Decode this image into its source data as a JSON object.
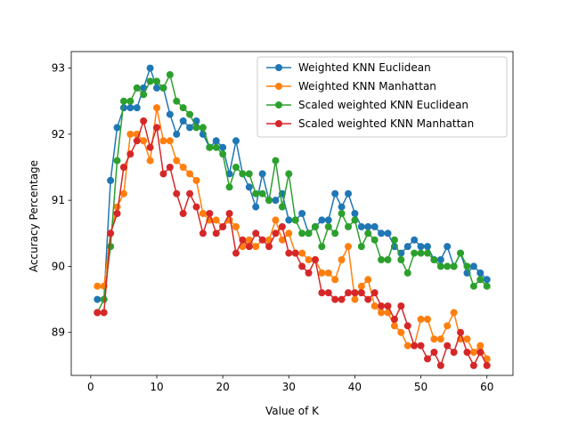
{
  "chart_data": {
    "type": "line",
    "xlabel": "Value of K",
    "ylabel": "Accuracy Percentage",
    "xlim": [
      -2.95,
      63.95
    ],
    "ylim": [
      88.35,
      93.25
    ],
    "xticks": [
      0,
      10,
      20,
      30,
      40,
      50,
      60
    ],
    "yticks": [
      89,
      90,
      91,
      92,
      93
    ],
    "legend_position": "upper-right",
    "x": [
      1,
      2,
      3,
      4,
      5,
      6,
      7,
      8,
      9,
      10,
      11,
      12,
      13,
      14,
      15,
      16,
      17,
      18,
      19,
      20,
      21,
      22,
      23,
      24,
      25,
      26,
      27,
      28,
      29,
      30,
      31,
      32,
      33,
      34,
      35,
      36,
      37,
      38,
      39,
      40,
      41,
      42,
      43,
      44,
      45,
      46,
      47,
      48,
      49,
      50,
      51,
      52,
      53,
      54,
      55,
      56,
      57,
      58,
      59,
      60
    ],
    "series": [
      {
        "name": "Weighted KNN Euclidean",
        "color": "#1f77b4",
        "values": [
          89.5,
          89.5,
          91.3,
          92.1,
          92.4,
          92.4,
          92.4,
          92.7,
          93.0,
          92.7,
          92.7,
          92.3,
          92.0,
          92.2,
          92.1,
          92.2,
          92.0,
          91.8,
          91.9,
          91.8,
          91.4,
          91.9,
          91.4,
          91.2,
          90.9,
          91.4,
          91.0,
          91.0,
          91.1,
          90.7,
          90.7,
          90.8,
          90.5,
          90.6,
          90.7,
          90.7,
          91.1,
          90.9,
          91.1,
          90.8,
          90.6,
          90.6,
          90.6,
          90.5,
          90.5,
          90.3,
          90.2,
          90.3,
          90.4,
          90.3,
          90.3,
          90.1,
          90.1,
          90.3,
          90.0,
          90.2,
          89.9,
          90.0,
          89.9,
          89.8
        ]
      },
      {
        "name": "Weighted KNN Manhattan",
        "color": "#ff7f0e",
        "values": [
          89.7,
          89.7,
          90.5,
          90.9,
          91.1,
          92.0,
          92.0,
          91.9,
          91.6,
          92.4,
          91.9,
          91.9,
          91.6,
          91.5,
          91.4,
          91.3,
          90.8,
          90.7,
          90.7,
          90.6,
          90.7,
          90.6,
          90.3,
          90.4,
          90.3,
          90.4,
          90.4,
          90.7,
          90.4,
          90.5,
          90.2,
          90.2,
          90.1,
          90.1,
          89.9,
          89.9,
          89.8,
          90.1,
          90.3,
          89.5,
          89.7,
          89.8,
          89.4,
          89.3,
          89.3,
          89.1,
          89.0,
          88.8,
          88.8,
          89.2,
          89.2,
          88.9,
          88.9,
          89.1,
          89.3,
          88.9,
          88.9,
          88.7,
          88.8,
          88.6
        ]
      },
      {
        "name": "Scaled weighted KNN Euclidean",
        "color": "#2ca02c",
        "values": [
          89.3,
          89.5,
          90.3,
          91.6,
          92.5,
          92.5,
          92.7,
          92.6,
          92.8,
          92.8,
          92.7,
          92.9,
          92.5,
          92.4,
          92.3,
          92.1,
          92.1,
          91.8,
          91.8,
          91.7,
          91.2,
          91.5,
          91.4,
          91.4,
          91.1,
          91.1,
          91.0,
          91.6,
          90.9,
          91.4,
          90.7,
          90.5,
          90.5,
          90.6,
          90.3,
          90.6,
          90.5,
          90.8,
          90.6,
          90.7,
          90.3,
          90.5,
          90.4,
          90.1,
          90.1,
          90.4,
          90.1,
          89.9,
          90.2,
          90.2,
          90.2,
          90.1,
          90.0,
          90.0,
          90.0,
          90.2,
          90.0,
          89.7,
          89.8,
          89.7
        ]
      },
      {
        "name": "Scaled weighted KNN Manhattan",
        "color": "#d62728",
        "values": [
          89.3,
          89.3,
          90.5,
          90.8,
          91.5,
          91.7,
          91.9,
          92.2,
          91.8,
          92.1,
          91.4,
          91.5,
          91.1,
          90.8,
          91.1,
          90.9,
          90.5,
          90.8,
          90.5,
          90.6,
          90.8,
          90.2,
          90.4,
          90.3,
          90.5,
          90.4,
          90.3,
          90.5,
          90.6,
          90.2,
          90.2,
          90.0,
          89.9,
          90.1,
          89.6,
          89.6,
          89.5,
          89.5,
          89.6,
          89.6,
          89.6,
          89.5,
          89.6,
          89.4,
          89.4,
          89.2,
          89.4,
          89.1,
          88.8,
          88.8,
          88.6,
          88.7,
          88.5,
          88.8,
          88.7,
          89.0,
          88.7,
          88.5,
          88.7,
          88.5
        ]
      }
    ]
  }
}
